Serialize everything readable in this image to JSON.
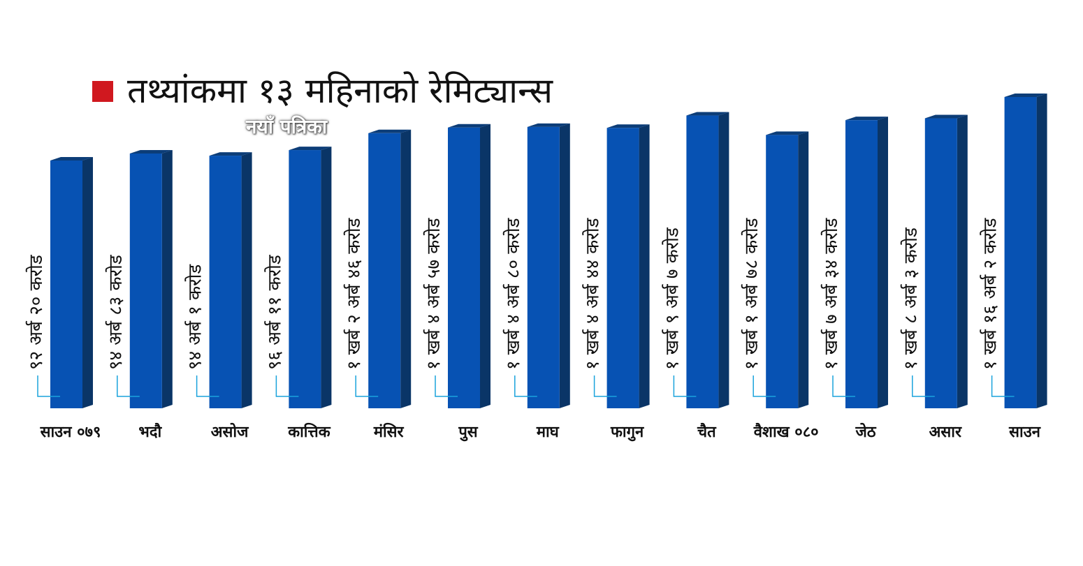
{
  "chart_data": {
    "type": "bar",
    "title": "तथ्यांकमा १३ महिनाको रेमिट्यान्स",
    "watermark": "नयाँ पत्रिका",
    "categories": [
      "साउन ०७९",
      "भदौ",
      "असोज",
      "कात्तिक",
      "मंसिर",
      "पुस",
      "माघ",
      "फागुन",
      "चैत",
      "वैशाख ०८०",
      "जेठ",
      "असार",
      "साउन"
    ],
    "data_labels": [
      "९२ अर्ब २० करोड",
      "९४ अर्ब ८३ करोड",
      "९४ अर्ब १ करोड",
      "९६ अर्ब ११ करोड",
      "१ खर्ब २ अर्ब ४६ करोड",
      "१ खर्ब ४ अर्ब ५७ करोड",
      "१ खर्ब ४ अर्ब ८० करोड",
      "१ खर्ब ४ अर्ब ४४ करोड",
      "१ खर्ब ९ अर्ब ७ करोड",
      "१ खर्ब १ अर्ब ७८ करोड",
      "१ खर्ब ७ अर्ब ३४ करोड",
      "१ खर्ब ८ अर्ब ३ करोड",
      "१ खर्ब १६ अर्ब २ करोड"
    ],
    "values": [
      92.2,
      94.83,
      94.01,
      96.11,
      102.46,
      104.57,
      104.8,
      104.44,
      109.07,
      101.78,
      107.34,
      108.03,
      116.02
    ],
    "colors": {
      "front": "#0752b3",
      "side": "#0a3567",
      "top": "#0c3d78",
      "label": "#111111",
      "leader": "#1aa3dc",
      "swatch": "#d0181f"
    }
  }
}
